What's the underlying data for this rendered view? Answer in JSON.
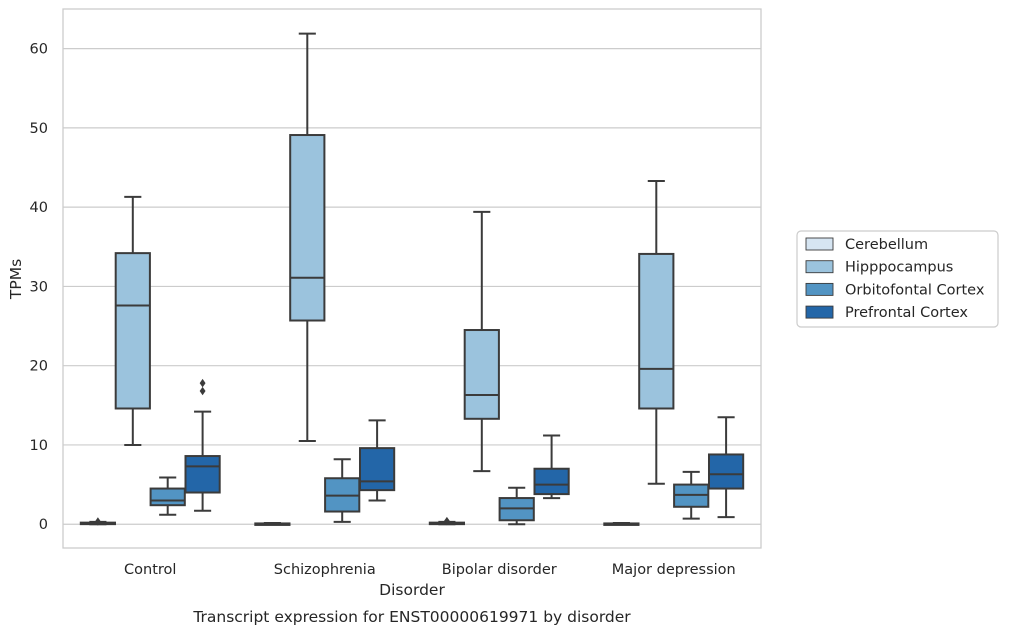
{
  "chart_data": {
    "type": "box",
    "title": "",
    "caption": "Transcript expression for ENST00000619971 by disorder",
    "xlabel": "Disorder",
    "ylabel": "TPMs",
    "ylim": [
      -3,
      65
    ],
    "yticks": [
      0,
      10,
      20,
      30,
      40,
      50,
      60
    ],
    "grid": "horizontal",
    "legend_position": "right",
    "categories": [
      "Control",
      "Schizophrenia",
      "Bipolar disorder",
      "Major depression"
    ],
    "series": [
      {
        "name": "Cerebellum",
        "color": "#d6e5f2",
        "boxes": [
          {
            "whislo": 0.0,
            "q1": 0.05,
            "med": 0.1,
            "q3": 0.2,
            "whishi": 0.3,
            "fliers": [
              0.35
            ]
          },
          {
            "whislo": 0.0,
            "q1": 0.02,
            "med": 0.05,
            "q3": 0.1,
            "whishi": 0.15,
            "fliers": []
          },
          {
            "whislo": 0.0,
            "q1": 0.05,
            "med": 0.1,
            "q3": 0.2,
            "whishi": 0.3,
            "fliers": [
              0.4
            ]
          },
          {
            "whislo": 0.0,
            "q1": 0.02,
            "med": 0.05,
            "q3": 0.1,
            "whishi": 0.15,
            "fliers": []
          }
        ]
      },
      {
        "name": "Hipppocampus",
        "color": "#9bc3dd",
        "boxes": [
          {
            "whislo": 10.0,
            "q1": 14.6,
            "med": 27.6,
            "q3": 34.2,
            "whishi": 41.3,
            "fliers": []
          },
          {
            "whislo": 10.5,
            "q1": 25.7,
            "med": 31.1,
            "q3": 49.1,
            "whishi": 61.9,
            "fliers": []
          },
          {
            "whislo": 6.7,
            "q1": 13.3,
            "med": 16.3,
            "q3": 24.5,
            "whishi": 39.4,
            "fliers": []
          },
          {
            "whislo": 5.1,
            "q1": 14.6,
            "med": 19.6,
            "q3": 34.1,
            "whishi": 43.3,
            "fliers": []
          }
        ]
      },
      {
        "name": "Orbitofontal Cortex",
        "color": "#5294c3",
        "boxes": [
          {
            "whislo": 1.2,
            "q1": 2.4,
            "med": 3.0,
            "q3": 4.5,
            "whishi": 5.9,
            "fliers": []
          },
          {
            "whislo": 0.3,
            "q1": 1.6,
            "med": 3.6,
            "q3": 5.8,
            "whishi": 8.2,
            "fliers": []
          },
          {
            "whislo": 0.0,
            "q1": 0.5,
            "med": 2.0,
            "q3": 3.3,
            "whishi": 4.6,
            "fliers": []
          },
          {
            "whislo": 0.7,
            "q1": 2.2,
            "med": 3.7,
            "q3": 5.0,
            "whishi": 6.6,
            "fliers": []
          }
        ]
      },
      {
        "name": "Prefrontal Cortex",
        "color": "#2366a8",
        "boxes": [
          {
            "whislo": 1.7,
            "q1": 4.0,
            "med": 7.3,
            "q3": 8.6,
            "whishi": 14.2,
            "fliers": [
              16.8,
              17.8
            ]
          },
          {
            "whislo": 3.0,
            "q1": 4.3,
            "med": 5.4,
            "q3": 9.6,
            "whishi": 13.1,
            "fliers": []
          },
          {
            "whislo": 3.3,
            "q1": 3.8,
            "med": 5.0,
            "q3": 7.0,
            "whishi": 11.2,
            "fliers": []
          },
          {
            "whislo": 0.9,
            "q1": 4.5,
            "med": 6.3,
            "q3": 8.8,
            "whishi": 13.5,
            "fliers": []
          }
        ]
      }
    ]
  }
}
